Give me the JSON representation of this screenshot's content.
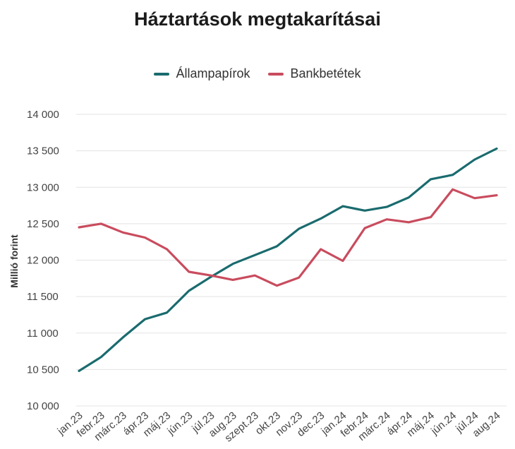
{
  "chart_data": {
    "type": "line",
    "title": "Háztartások megtakarításai",
    "xlabel": "",
    "ylabel": "Millió forint",
    "ylim": [
      10000,
      14000
    ],
    "yticks": [
      10000,
      10500,
      11000,
      11500,
      12000,
      12500,
      13000,
      13500,
      14000
    ],
    "ytick_labels": [
      "10 000",
      "10 500",
      "11 000",
      "11 500",
      "12 000",
      "12 500",
      "13 000",
      "13 500",
      "14 000"
    ],
    "grid": true,
    "legend_position": "top-center",
    "categories": [
      "jan.23",
      "febr.23",
      "márc.23",
      "ápr.23",
      "máj.23",
      "jún.23",
      "júl.23",
      "aug.23",
      "szept.23",
      "okt.23",
      "nov.23",
      "dec.23",
      "jan.24",
      "febr.24",
      "márc.24",
      "ápr.24",
      "máj.24",
      "jún.24",
      "júl.24",
      "aug.24"
    ],
    "series": [
      {
        "name": "Állampapírok",
        "color": "#1a6b6e",
        "values": [
          10480,
          10670,
          10940,
          11190,
          11280,
          11580,
          11770,
          11950,
          12070,
          12190,
          12430,
          12570,
          12740,
          12680,
          12730,
          12860,
          13110,
          13170,
          13380,
          13530
        ]
      },
      {
        "name": "Bankbetétek",
        "color": "#c94c5e",
        "values": [
          12450,
          12500,
          12380,
          12310,
          12150,
          11840,
          11790,
          11730,
          11790,
          11650,
          11760,
          12150,
          11990,
          12440,
          12560,
          12520,
          12590,
          12970,
          12850,
          12890
        ]
      }
    ]
  }
}
